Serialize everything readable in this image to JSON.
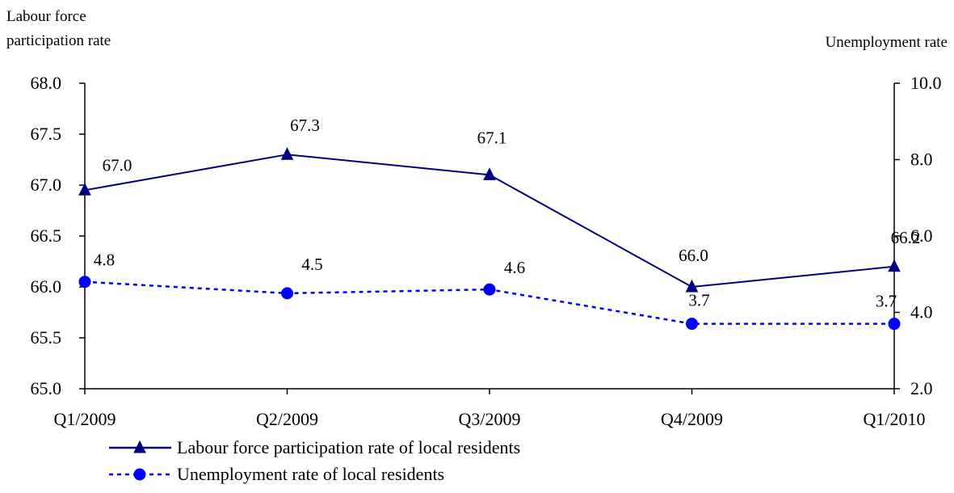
{
  "chart_data": {
    "type": "line",
    "categories": [
      "Q1/2009",
      "Q2/2009",
      "Q3/2009",
      "Q4/2009",
      "Q1/2010"
    ],
    "left_axis": {
      "label_lines": [
        "Labour force",
        "participation rate"
      ],
      "range": [
        65.0,
        68.0
      ],
      "ticks": [
        "65.0",
        "65.5",
        "66.0",
        "66.5",
        "67.0",
        "67.5",
        "68.0"
      ],
      "tick_values": [
        65.0,
        65.5,
        66.0,
        66.5,
        67.0,
        67.5,
        68.0
      ]
    },
    "right_axis": {
      "label": "Unemployment rate",
      "range": [
        2.0,
        10.0
      ],
      "ticks": [
        "2.0",
        "4.0",
        "6.0",
        "8.0",
        "10.0"
      ],
      "tick_values": [
        2.0,
        4.0,
        6.0,
        8.0,
        10.0
      ]
    },
    "series": [
      {
        "name": "Labour force participation rate of local residents",
        "axis": "left",
        "values": [
          66.95,
          67.3,
          67.1,
          66.0,
          66.2
        ],
        "labels": [
          "67.0",
          "67.3",
          "67.1",
          "66.0",
          "66.2"
        ],
        "color": "#000080",
        "line_style": "solid",
        "marker": "triangle"
      },
      {
        "name": "Unemployment rate of local residents",
        "axis": "right",
        "values": [
          4.8,
          4.5,
          4.6,
          3.7,
          3.7
        ],
        "labels": [
          "4.8",
          "4.5",
          "4.6",
          "3.7",
          "3.7"
        ],
        "color": "#0000ff",
        "line_style": "dashed",
        "marker": "circle"
      }
    ],
    "grid": false,
    "legend_position": "bottom-center"
  }
}
